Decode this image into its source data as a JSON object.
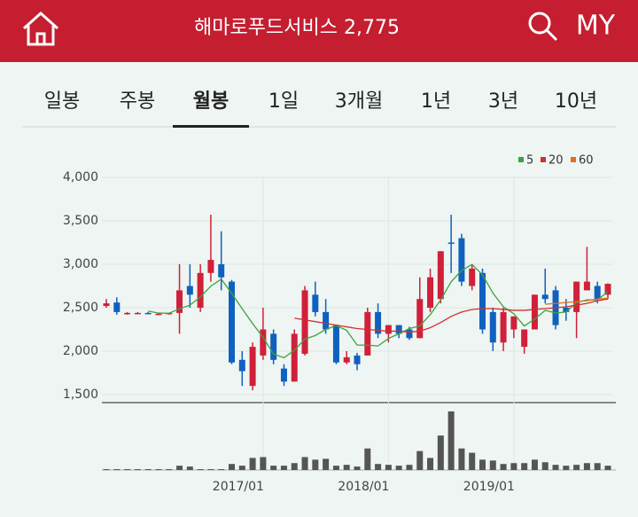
{
  "header": {
    "title": "해마로푸드서비스 2,775",
    "menu": "MY"
  },
  "tabs": {
    "items": [
      "일봉",
      "주봉",
      "월봉",
      "1일",
      "3개월",
      "1년",
      "3년",
      "10년"
    ],
    "selected": 2
  },
  "chart_data": {
    "type": "candlestick",
    "categories": [
      null,
      null,
      null,
      null,
      null,
      null,
      null,
      null,
      null,
      null,
      null,
      null,
      null,
      null,
      null,
      "2017/01",
      null,
      null,
      null,
      null,
      null,
      null,
      null,
      null,
      null,
      null,
      null,
      "2018/01",
      null,
      null,
      null,
      null,
      null,
      null,
      null,
      null,
      null,
      null,
      null,
      "2019/01",
      null,
      null,
      null,
      null,
      null,
      null,
      null,
      null,
      null
    ],
    "open": [
      2520,
      2560,
      2430,
      2440,
      2440,
      2430,
      2430,
      2440,
      2750,
      2500,
      2900,
      3000,
      2800,
      1900,
      1600,
      1950,
      2200,
      1800,
      1650,
      1970,
      2650,
      2450,
      2300,
      1870,
      1950,
      1950,
      2450,
      2200,
      2300,
      2250,
      2150,
      2500,
      2600,
      3250,
      3300,
      2750,
      2900,
      2450,
      2100,
      2250,
      2050,
      2250,
      2650,
      2700,
      2500,
      2450,
      2700,
      2750,
      2650
    ],
    "high": [
      2600,
      2620,
      2450,
      2450,
      2450,
      2440,
      2440,
      3000,
      3000,
      3000,
      3570,
      3380,
      2820,
      2000,
      2100,
      2500,
      2250,
      1850,
      2250,
      2750,
      2800,
      2600,
      2300,
      2000,
      1980,
      2500,
      2550,
      2300,
      2300,
      2280,
      2850,
      2950,
      3150,
      3570,
      3350,
      3000,
      2950,
      2500,
      2500,
      2400,
      2250,
      2650,
      2950,
      2750,
      2600,
      2800,
      3200,
      2800,
      2780
    ],
    "low": [
      2500,
      2420,
      2420,
      2430,
      2430,
      2420,
      2420,
      2200,
      2500,
      2450,
      2800,
      2700,
      1850,
      1600,
      1550,
      1900,
      1850,
      1600,
      1650,
      1950,
      2400,
      2200,
      1850,
      1850,
      1780,
      1950,
      2150,
      2100,
      2150,
      2130,
      2150,
      2450,
      2550,
      2900,
      2750,
      2700,
      2200,
      2000,
      2000,
      2150,
      1970,
      2250,
      2550,
      2250,
      2350,
      2150,
      2700,
      2550,
      2600
    ],
    "close": [
      2550,
      2450,
      2440,
      2440,
      2430,
      2430,
      2440,
      2700,
      2650,
      2900,
      3050,
      2850,
      1870,
      1770,
      2050,
      2250,
      1900,
      1650,
      2200,
      2700,
      2450,
      2250,
      1870,
      1930,
      1850,
      2450,
      2200,
      2300,
      2200,
      2150,
      2600,
      2850,
      3150,
      3240,
      2800,
      2950,
      2250,
      2100,
      2450,
      2400,
      2250,
      2650,
      2600,
      2300,
      2450,
      2800,
      2800,
      2600,
      2775
    ],
    "up_color": "#d0203a",
    "down_color": "#1060c0",
    "volume": [
      1,
      1,
      1,
      1,
      1,
      1,
      1,
      5,
      4,
      1,
      1,
      1,
      7,
      5,
      14,
      15,
      5,
      5,
      8,
      15,
      12,
      13,
      5,
      6,
      4,
      25,
      7,
      6,
      5,
      6,
      22,
      14,
      40,
      68,
      25,
      20,
      12,
      11,
      7,
      8,
      8,
      12,
      9,
      6,
      5,
      6,
      8,
      8,
      5
    ],
    "volume_color": "#555555",
    "vlim": [
      0,
      70
    ],
    "series": [
      {
        "name": "5",
        "color": "#3aa53a",
        "values": [
          null,
          null,
          null,
          null,
          2462,
          2438,
          2436,
          2488,
          2530,
          2624,
          2748,
          2830,
          2664,
          2488,
          2318,
          2158,
          1968,
          1924,
          2010,
          2140,
          2180,
          2250,
          2294,
          2240,
          2070,
          2070,
          2060,
          2146,
          2200,
          2260,
          2290,
          2420,
          2590,
          2798,
          2928,
          2998,
          2878,
          2668,
          2510,
          2430,
          2290,
          2370,
          2470,
          2440,
          2450,
          2560,
          2590,
          2590,
          2685
        ]
      },
      {
        "name": "20",
        "color": "#d03030",
        "values": [
          null,
          null,
          null,
          null,
          null,
          null,
          null,
          null,
          null,
          null,
          null,
          null,
          null,
          null,
          null,
          null,
          null,
          null,
          2380,
          2360,
          2340,
          2320,
          2300,
          2280,
          2260,
          2250,
          2240,
          2230,
          2230,
          2220,
          2230,
          2270,
          2330,
          2400,
          2450,
          2480,
          2490,
          2490,
          2480,
          2470,
          2470,
          2480,
          2490,
          2500,
          2510,
          2530,
          2550,
          2580,
          2600
        ]
      },
      {
        "name": "60",
        "color": "#e07020",
        "values": [
          null,
          null,
          null,
          null,
          null,
          null,
          null,
          null,
          null,
          null,
          null,
          null,
          null,
          null,
          null,
          null,
          null,
          null,
          null,
          null,
          null,
          null,
          null,
          null,
          null,
          null,
          null,
          null,
          null,
          null,
          null,
          null,
          null,
          null,
          null,
          null,
          null,
          null,
          null,
          null,
          null,
          null,
          2540,
          2550,
          2560,
          2570,
          2580,
          2600,
          2610
        ]
      }
    ],
    "ylim": [
      1500,
      4000
    ],
    "yticks": [
      {
        "value": 1500,
        "label": "1,500"
      },
      {
        "value": 2000,
        "label": "2,000"
      },
      {
        "value": 2500,
        "label": "2,500"
      },
      {
        "value": 3000,
        "label": "3,000"
      },
      {
        "value": 3500,
        "label": "3,500"
      },
      {
        "value": 4000,
        "label": "4,000"
      }
    ],
    "grid": true,
    "legend": "top-right"
  }
}
